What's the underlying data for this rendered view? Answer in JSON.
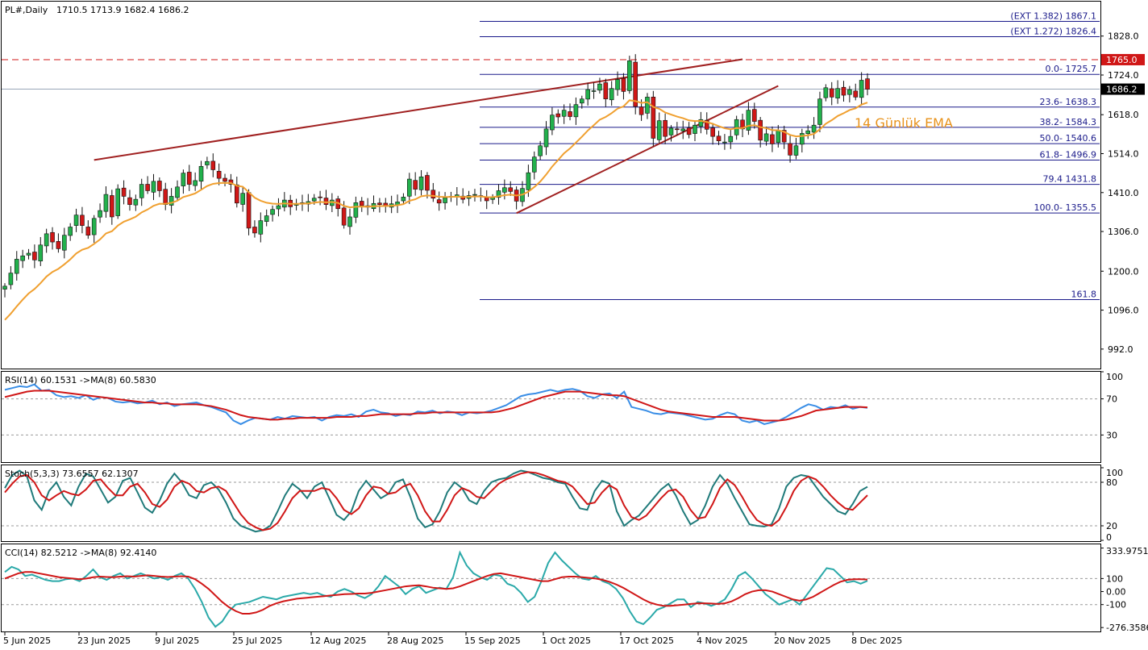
{
  "header": {
    "symbol": "PL#,Daily",
    "ohlc": "1710.5 1713.9 1682.4 1686.2"
  },
  "colors": {
    "bull": "#22b14c",
    "bear": "#d01717",
    "ema": "#f0a030",
    "trend": "#a02020",
    "fib": "#1a1a8a",
    "rsi_main": "#3a8ee6",
    "rsi_ma": "#d01717",
    "stoch_main": "#1f7a7a",
    "stoch_signal": "#d01717",
    "cci_main": "#2aa9a9",
    "cci_ma": "#d01717",
    "resistance": "#d01717"
  },
  "chart_data": [
    {
      "type": "candlestick",
      "title": "PL#,Daily",
      "ylim": [
        940,
        1920
      ],
      "y_ticks": [
        "1828.0",
        "1724.0",
        "1618.0",
        "1514.0",
        "1410.0",
        "1306.0",
        "1200.0",
        "1096.0",
        "992.0"
      ],
      "current_price_label": "1686.2",
      "current_price": 1686.2,
      "resistance_label": "1765.0",
      "resistance": 1765.0,
      "ema_label": "14 Günlük EMA",
      "x_dates": [
        "5 Jun 2025",
        "23 Jun 2025",
        "9 Jul 2025",
        "25 Jul 2025",
        "12 Aug 2025",
        "28 Aug 2025",
        "15 Sep 2025",
        "1 Oct 2025",
        "17 Oct 2025",
        "4 Nov 2025",
        "20 Nov 2025",
        "8 Dec 2025"
      ],
      "closes": [
        1160,
        1195,
        1232,
        1241,
        1248,
        1230,
        1270,
        1300,
        1278,
        1260,
        1296,
        1318,
        1350,
        1322,
        1296,
        1341,
        1362,
        1405,
        1345,
        1420,
        1400,
        1378,
        1392,
        1432,
        1415,
        1440,
        1415,
        1378,
        1400,
        1425,
        1462,
        1432,
        1442,
        1480,
        1493,
        1471,
        1448,
        1440,
        1432,
        1382,
        1408,
        1315,
        1302,
        1335,
        1348,
        1365,
        1375,
        1390,
        1372,
        1380,
        1383,
        1386,
        1395,
        1398,
        1378,
        1390,
        1367,
        1323,
        1345,
        1383,
        1375,
        1371,
        1381,
        1378,
        1373,
        1380,
        1385,
        1398,
        1446,
        1419,
        1452,
        1416,
        1395,
        1382,
        1396,
        1399,
        1404,
        1392,
        1402,
        1405,
        1399,
        1388,
        1396,
        1415,
        1423,
        1413,
        1387,
        1421,
        1463,
        1505,
        1535,
        1580,
        1617,
        1612,
        1630,
        1613,
        1645,
        1660,
        1685,
        1682,
        1700,
        1660,
        1688,
        1712,
        1680,
        1762,
        1640,
        1618,
        1665,
        1555,
        1602,
        1560,
        1582,
        1578,
        1580,
        1565,
        1590,
        1605,
        1579,
        1560,
        1548,
        1545,
        1560,
        1605,
        1580,
        1630,
        1600,
        1550,
        1567,
        1540,
        1575,
        1545,
        1510,
        1535,
        1568,
        1575,
        1590,
        1660,
        1690,
        1665,
        1688,
        1670,
        1685,
        1665,
        1710,
        1686
      ],
      "ema14_closes_seed": 1070,
      "fibonacci": [
        {
          "label": "(EXT 1.382)  1867.1",
          "value": 1867.1
        },
        {
          "label": "(EXT 1.272)  1826.4",
          "value": 1826.4
        },
        {
          "label": "0.0- 1725.7",
          "value": 1725.7
        },
        {
          "label": "23.6- 1638.3",
          "value": 1638.3
        },
        {
          "label": "38.2- 1584.3",
          "value": 1584.3
        },
        {
          "label": "50.0- 1540.6",
          "value": 1540.6
        },
        {
          "label": "61.8- 1496.9",
          "value": 1496.9
        },
        {
          "label": "79.4 1431.8",
          "value": 1431.8
        },
        {
          "label": "100.0- 1355.5",
          "value": 1355.5
        },
        {
          "label": "161.8",
          "value": 1124.1
        }
      ],
      "trendlines": [
        {
          "from": [
            15,
            1497
          ],
          "to": [
            124,
            1766
          ]
        },
        {
          "from": [
            86,
            1355
          ],
          "to": [
            130,
            1695
          ]
        }
      ]
    },
    {
      "type": "line",
      "title": "RSI(14) 60.1531  ->MA(8) 60.5830",
      "ylim": [
        0,
        100
      ],
      "y_ticks": [
        "100",
        "70",
        "30"
      ],
      "levels": [
        70,
        30
      ],
      "series": [
        {
          "name": "RSI(14)",
          "values": [
            80,
            82,
            84,
            83,
            86,
            79,
            80,
            74,
            72,
            73,
            71,
            74,
            69,
            72,
            71,
            67,
            66,
            67,
            65,
            66,
            68,
            64,
            66,
            62,
            64,
            65,
            66,
            63,
            61,
            58,
            55,
            46,
            42,
            46,
            49,
            48,
            47,
            50,
            48,
            51,
            50,
            49,
            50,
            46,
            50,
            52,
            51,
            53,
            50,
            56,
            58,
            55,
            54,
            51,
            53,
            52,
            56,
            55,
            57,
            54,
            56,
            55,
            52,
            55,
            54,
            55,
            57,
            60,
            63,
            68,
            73,
            75,
            76,
            78,
            80,
            78,
            80,
            81,
            79,
            73,
            71,
            75,
            76,
            71,
            78,
            61,
            59,
            57,
            54,
            53,
            55,
            54,
            53,
            51,
            49,
            47,
            48,
            52,
            55,
            53,
            46,
            44,
            46,
            42,
            44,
            46,
            50,
            55,
            60,
            64,
            62,
            58,
            61,
            60,
            63,
            59,
            61,
            60
          ]
        },
        {
          "name": "MA(8)",
          "values": [
            72,
            74,
            76,
            78,
            79,
            79,
            79,
            78,
            77,
            76,
            75,
            74,
            73,
            72,
            71,
            70,
            69,
            68,
            67,
            66,
            66,
            65,
            65,
            64,
            64,
            64,
            64,
            63,
            62,
            60,
            58,
            55,
            52,
            50,
            49,
            48,
            47,
            47,
            48,
            48,
            49,
            49,
            49,
            49,
            49,
            50,
            50,
            50,
            51,
            51,
            52,
            53,
            53,
            53,
            53,
            53,
            54,
            54,
            55,
            55,
            55,
            55,
            55,
            55,
            55,
            55,
            55,
            56,
            58,
            60,
            63,
            66,
            69,
            72,
            74,
            76,
            78,
            78,
            78,
            77,
            76,
            75,
            74,
            74,
            73,
            70,
            67,
            64,
            61,
            58,
            56,
            55,
            54,
            53,
            52,
            51,
            50,
            50,
            50,
            50,
            49,
            48,
            47,
            46,
            46,
            46,
            47,
            49,
            51,
            54,
            57,
            58,
            59,
            60,
            61,
            61,
            61,
            60.6
          ]
        }
      ]
    },
    {
      "type": "line",
      "title": "Stoch(5,3,3) 73.6557 62.1307",
      "ylim": [
        0,
        100
      ],
      "y_ticks": [
        "100",
        "80",
        "20",
        "0"
      ],
      "levels": [
        80,
        20
      ],
      "series": [
        {
          "name": "%K",
          "values": [
            72,
            90,
            96,
            88,
            55,
            42,
            68,
            80,
            60,
            48,
            74,
            92,
            88,
            70,
            52,
            60,
            82,
            86,
            66,
            45,
            38,
            55,
            78,
            92,
            80,
            62,
            58,
            76,
            80,
            70,
            52,
            30,
            20,
            16,
            12,
            14,
            20,
            40,
            62,
            78,
            70,
            58,
            74,
            80,
            58,
            35,
            28,
            40,
            68,
            82,
            70,
            58,
            64,
            80,
            84,
            60,
            30,
            18,
            22,
            40,
            66,
            80,
            72,
            55,
            50,
            68,
            80,
            84,
            86,
            92,
            96,
            94,
            90,
            86,
            84,
            80,
            78,
            60,
            44,
            42,
            68,
            82,
            78,
            40,
            20,
            28,
            34,
            46,
            58,
            70,
            78,
            62,
            40,
            22,
            28,
            48,
            74,
            90,
            78,
            58,
            40,
            22,
            20,
            19,
            22,
            44,
            74,
            86,
            90,
            88,
            74,
            60,
            50,
            40,
            36,
            50,
            68,
            73.7
          ]
        },
        {
          "name": "%D",
          "values": [
            66,
            78,
            88,
            90,
            80,
            62,
            55,
            62,
            68,
            64,
            62,
            70,
            82,
            84,
            72,
            62,
            62,
            74,
            78,
            66,
            50,
            46,
            56,
            74,
            82,
            78,
            68,
            66,
            72,
            74,
            68,
            52,
            36,
            24,
            18,
            14,
            16,
            24,
            40,
            58,
            68,
            68,
            68,
            72,
            70,
            58,
            42,
            36,
            44,
            62,
            74,
            72,
            64,
            66,
            74,
            78,
            62,
            40,
            26,
            26,
            42,
            62,
            72,
            68,
            60,
            58,
            68,
            78,
            84,
            88,
            92,
            94,
            93,
            90,
            86,
            82,
            80,
            74,
            62,
            50,
            52,
            66,
            76,
            70,
            48,
            32,
            28,
            34,
            46,
            58,
            68,
            70,
            60,
            42,
            30,
            32,
            50,
            72,
            84,
            76,
            60,
            42,
            28,
            22,
            20,
            28,
            46,
            68,
            82,
            88,
            84,
            74,
            62,
            52,
            44,
            42,
            52,
            62.1
          ]
        }
      ]
    },
    {
      "type": "line",
      "title": "CCI(14) 82.5212  ->MA(8) 92.4140",
      "ylim": [
        -300,
        350
      ],
      "y_ticks": [
        "333.9751",
        "100",
        "0.00",
        "-100",
        "-276.3586"
      ],
      "levels": [
        100,
        -100
      ],
      "series": [
        {
          "name": "CCI(14)",
          "values": [
            150,
            190,
            170,
            120,
            130,
            110,
            90,
            80,
            80,
            95,
            100,
            80,
            120,
            170,
            110,
            90,
            120,
            140,
            100,
            120,
            140,
            120,
            100,
            110,
            90,
            120,
            140,
            100,
            20,
            -80,
            -200,
            -270,
            -230,
            -150,
            -100,
            -90,
            -80,
            -60,
            -40,
            -50,
            -60,
            -40,
            -30,
            -20,
            -10,
            -20,
            -10,
            -30,
            -40,
            0,
            20,
            0,
            -30,
            -50,
            -20,
            40,
            120,
            80,
            40,
            -20,
            20,
            40,
            -10,
            10,
            30,
            20,
            110,
            300,
            200,
            140,
            110,
            90,
            130,
            120,
            60,
            40,
            -10,
            -80,
            -40,
            80,
            220,
            300,
            240,
            190,
            140,
            100,
            90,
            120,
            80,
            60,
            20,
            -50,
            -150,
            -230,
            -250,
            -200,
            -140,
            -120,
            -90,
            -60,
            -60,
            -120,
            -80,
            -90,
            -110,
            -90,
            -60,
            20,
            120,
            150,
            100,
            40,
            -20,
            -60,
            -100,
            -80,
            -60,
            -100,
            -30,
            40,
            110,
            180,
            170,
            120,
            70,
            80,
            60,
            82.5
          ]
        },
        {
          "name": "MA(8)",
          "values": [
            100,
            120,
            140,
            150,
            150,
            140,
            130,
            120,
            110,
            105,
            100,
            95,
            100,
            110,
            115,
            112,
            110,
            115,
            118,
            115,
            120,
            125,
            120,
            115,
            112,
            115,
            118,
            115,
            95,
            60,
            20,
            -30,
            -80,
            -120,
            -150,
            -170,
            -170,
            -160,
            -140,
            -110,
            -90,
            -75,
            -65,
            -55,
            -50,
            -45,
            -40,
            -35,
            -30,
            -25,
            -20,
            -18,
            -15,
            -15,
            -10,
            0,
            10,
            20,
            30,
            40,
            45,
            48,
            40,
            30,
            25,
            20,
            25,
            40,
            60,
            80,
            100,
            120,
            135,
            140,
            130,
            120,
            110,
            100,
            90,
            80,
            80,
            95,
            110,
            115,
            115,
            110,
            105,
            100,
            90,
            75,
            55,
            30,
            0,
            -30,
            -60,
            -85,
            -100,
            -110,
            -110,
            -105,
            -100,
            -95,
            -90,
            -90,
            -92,
            -95,
            -90,
            -75,
            -50,
            -20,
            0,
            10,
            10,
            0,
            -20,
            -40,
            -60,
            -70,
            -60,
            -40,
            -10,
            20,
            50,
            75,
            90,
            95,
            95,
            92.4
          ]
        }
      ]
    }
  ]
}
